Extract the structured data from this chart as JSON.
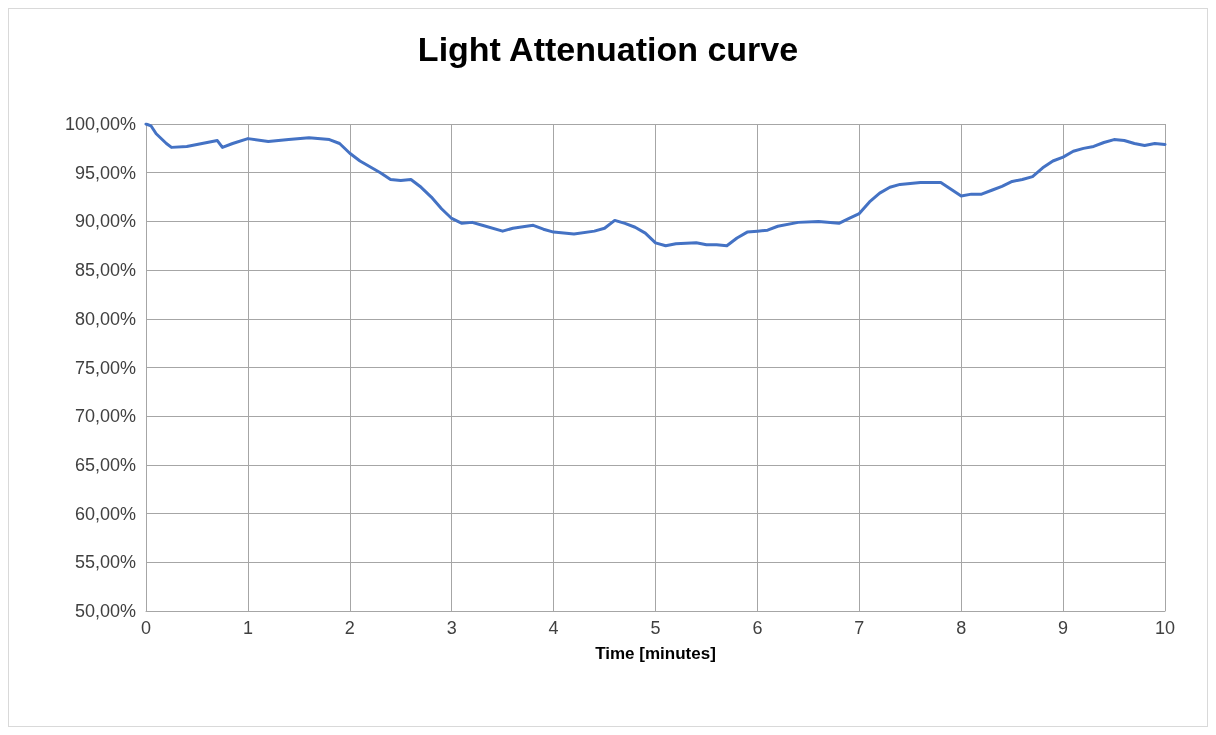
{
  "chart_data": {
    "type": "line",
    "title": "Light Attenuation curve",
    "xlabel": "Time [minutes]",
    "x": [
      0,
      0.05,
      0.1,
      0.2,
      0.25,
      0.4,
      0.5,
      0.6,
      0.7,
      0.75,
      0.85,
      1,
      1.2,
      1.4,
      1.6,
      1.8,
      1.9,
      2,
      2.1,
      2.3,
      2.4,
      2.5,
      2.6,
      2.7,
      2.8,
      2.9,
      3,
      3.1,
      3.2,
      3.3,
      3.5,
      3.6,
      3.8,
      3.9,
      4,
      4.1,
      4.2,
      4.4,
      4.5,
      4.6,
      4.7,
      4.8,
      4.9,
      5,
      5.1,
      5.2,
      5.4,
      5.5,
      5.6,
      5.7,
      5.8,
      5.9,
      6,
      6.1,
      6.2,
      6.4,
      6.6,
      6.8,
      6.9,
      7,
      7.1,
      7.2,
      7.3,
      7.4,
      7.6,
      7.8,
      7.9,
      8,
      8.1,
      8.2,
      8.3,
      8.4,
      8.5,
      8.6,
      8.7,
      8.8,
      8.9,
      9,
      9.1,
      9.2,
      9.3,
      9.4,
      9.5,
      9.6,
      9.7,
      9.8,
      9.9,
      10
    ],
    "series": [
      {
        "color": "#4472c4",
        "values": [
          100,
          99.8,
          99,
          98,
          97.6,
          97.7,
          97.9,
          98.1,
          98.3,
          97.6,
          98,
          98.5,
          98.2,
          98.4,
          98.6,
          98.4,
          98,
          97,
          96.2,
          95,
          94.3,
          94.2,
          94.3,
          93.5,
          92.5,
          91.3,
          90.3,
          89.8,
          89.9,
          89.6,
          89,
          89.3,
          89.6,
          89.2,
          88.9,
          88.8,
          88.7,
          89,
          89.3,
          90.1,
          89.8,
          89.4,
          88.8,
          87.8,
          87.5,
          87.7,
          87.8,
          87.6,
          87.6,
          87.5,
          88.3,
          88.9,
          89,
          89.1,
          89.5,
          89.9,
          90,
          89.8,
          90.3,
          90.8,
          92,
          92.9,
          93.5,
          93.8,
          94,
          94,
          93.3,
          92.6,
          92.8,
          92.8,
          93.2,
          93.6,
          94.1,
          94.3,
          94.6,
          95.5,
          96.2,
          96.6,
          97.2,
          97.5,
          97.7,
          98.1,
          98.4,
          98.3,
          98,
          97.8,
          98,
          97.9
        ]
      }
    ],
    "xlim": [
      0,
      10
    ],
    "xticks": [
      0,
      1,
      2,
      3,
      4,
      5,
      6,
      7,
      8,
      9,
      10
    ],
    "ylim": [
      50,
      100
    ],
    "yticks": [
      {
        "value": 50,
        "label": "50,00%"
      },
      {
        "value": 55,
        "label": "55,00%"
      },
      {
        "value": 60,
        "label": "60,00%"
      },
      {
        "value": 65,
        "label": "65,00%"
      },
      {
        "value": 70,
        "label": "70,00%"
      },
      {
        "value": 75,
        "label": "75,00%"
      },
      {
        "value": 80,
        "label": "80,00%"
      },
      {
        "value": 85,
        "label": "85,00%"
      },
      {
        "value": 90,
        "label": "90,00%"
      },
      {
        "value": 95,
        "label": "95,00%"
      },
      {
        "value": 100,
        "label": "100,00%"
      }
    ],
    "grid": true,
    "marker": "none",
    "line_style": "solid"
  }
}
